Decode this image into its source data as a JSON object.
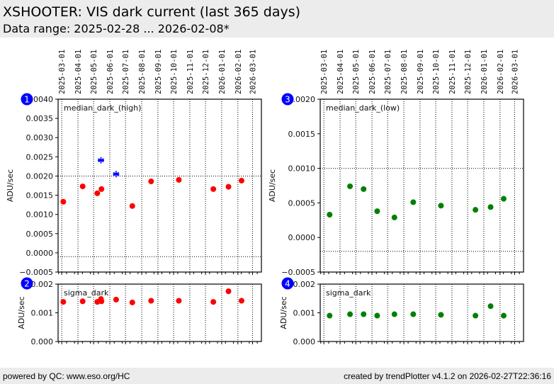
{
  "header": {
    "title": "XSHOOTER: VIS dark current (last 365 days)",
    "subtitle": "Data range: 2025-02-28 ... 2026-02-08*"
  },
  "footer": {
    "left": "powered by QC: www.eso.org/HC",
    "right": "created by trendPlotter v4.1.2 on 2026-02-27T22:36:16"
  },
  "colors": {
    "red_points": "#ff0000",
    "blue_points": "#0000ff",
    "green_points": "#008000",
    "badge": "#0000ff",
    "header_bg": "#ececec"
  },
  "chart_data": [
    {
      "id": "1",
      "type": "scatter",
      "title": "median_dark_(high)",
      "ylabel": "ADU/sec",
      "xlim": [
        "2025-02-22",
        "2026-03-18"
      ],
      "ylim": [
        -0.0005,
        0.004
      ],
      "yticks": [
        -0.0005,
        0.0,
        0.0005,
        0.001,
        0.0015,
        0.002,
        0.0025,
        0.003,
        0.0035,
        0.004
      ],
      "ytick_labels": [
        "−0.0005",
        "0.0000",
        "0.0005",
        "0.0010",
        "0.0015",
        "0.0020",
        "0.0025",
        "0.0030",
        "0.0035",
        "0.0040"
      ],
      "xticks": [
        "2025-03-01",
        "2025-04-01",
        "2025-05-01",
        "2025-06-01",
        "2025-07-01",
        "2025-08-01",
        "2025-09-01",
        "2025-10-01",
        "2025-11-01",
        "2025-12-01",
        "2026-01-01",
        "2026-02-01",
        "2026-03-01"
      ],
      "reference_lines": [
        0.002,
        -0.0001
      ],
      "grid": "vertical-dotted",
      "series": [
        {
          "name": "normal",
          "marker": "circle",
          "color": "#ff0000",
          "x": [
            "2025-03-04",
            "2025-04-10",
            "2025-05-08",
            "2025-05-16",
            "2025-07-14",
            "2025-08-19",
            "2025-10-11",
            "2025-12-16",
            "2026-01-14",
            "2026-02-08"
          ],
          "y": [
            0.00133,
            0.00173,
            0.00155,
            0.00166,
            0.00122,
            0.00186,
            0.0019,
            0.00166,
            0.00172,
            0.00188
          ]
        },
        {
          "name": "outlier",
          "marker": "asterisk",
          "color": "#0000ff",
          "x": [
            "2025-05-15",
            "2025-06-13"
          ],
          "y": [
            0.00241,
            0.00205
          ]
        }
      ]
    },
    {
      "id": "2",
      "type": "scatter",
      "title": "sigma_dark",
      "ylabel": "ADU/sec",
      "xlim": [
        "2025-02-22",
        "2026-03-18"
      ],
      "ylim": [
        0.0,
        0.002
      ],
      "yticks": [
        0.0,
        0.001,
        0.002
      ],
      "ytick_labels": [
        "0.000",
        "0.001",
        "0.002"
      ],
      "xticks": [
        "2025-03-01",
        "2025-04-01",
        "2025-05-01",
        "2025-06-01",
        "2025-07-01",
        "2025-08-01",
        "2025-09-01",
        "2025-10-01",
        "2025-11-01",
        "2025-12-01",
        "2026-01-01",
        "2026-02-01",
        "2026-03-01"
      ],
      "reference_lines": [],
      "grid": "vertical-dotted",
      "series": [
        {
          "name": "sigma",
          "marker": "circle",
          "color": "#ff0000",
          "x": [
            "2025-03-04",
            "2025-04-10",
            "2025-05-08",
            "2025-05-15",
            "2025-05-16",
            "2025-06-13",
            "2025-07-14",
            "2025-08-19",
            "2025-10-11",
            "2025-12-16",
            "2026-01-14",
            "2026-02-08"
          ],
          "y": [
            0.00138,
            0.0014,
            0.00138,
            0.00148,
            0.0014,
            0.00146,
            0.00136,
            0.00142,
            0.00142,
            0.00138,
            0.00175,
            0.00142
          ]
        }
      ]
    },
    {
      "id": "3",
      "type": "scatter",
      "title": "median_dark_(low)",
      "ylabel": "ADU/sec",
      "xlim": [
        "2025-02-22",
        "2026-03-18"
      ],
      "ylim": [
        -0.0005,
        0.002
      ],
      "yticks": [
        -0.0005,
        0.0,
        0.0005,
        0.001,
        0.0015,
        0.002
      ],
      "ytick_labels": [
        "−0.0005",
        "0.0000",
        "0.0005",
        "0.0010",
        "0.0015",
        "0.0020"
      ],
      "xticks": [
        "2025-03-01",
        "2025-04-01",
        "2025-05-01",
        "2025-06-01",
        "2025-07-01",
        "2025-08-01",
        "2025-09-01",
        "2025-10-01",
        "2025-11-01",
        "2025-12-01",
        "2026-01-01",
        "2026-02-01",
        "2026-03-01"
      ],
      "reference_lines": [
        0.001,
        -0.0002
      ],
      "grid": "vertical-dotted",
      "series": [
        {
          "name": "normal",
          "marker": "circle",
          "color": "#008000",
          "x": [
            "2025-03-12",
            "2025-04-20",
            "2025-05-16",
            "2025-06-11",
            "2025-07-14",
            "2025-08-19",
            "2025-10-11",
            "2025-12-16",
            "2026-01-14",
            "2026-02-08"
          ],
          "y": [
            0.00033,
            0.00074,
            0.0007,
            0.00038,
            0.00029,
            0.00051,
            0.00046,
            0.0004,
            0.00044,
            0.00056
          ]
        }
      ]
    },
    {
      "id": "4",
      "type": "scatter",
      "title": "sigma_dark",
      "ylabel": "ADU/sec",
      "xlim": [
        "2025-02-22",
        "2026-03-18"
      ],
      "ylim": [
        0.0,
        0.002
      ],
      "yticks": [
        0.0,
        0.001,
        0.002
      ],
      "ytick_labels": [
        "0.000",
        "0.001",
        "0.002"
      ],
      "xticks": [
        "2025-03-01",
        "2025-04-01",
        "2025-05-01",
        "2025-06-01",
        "2025-07-01",
        "2025-08-01",
        "2025-09-01",
        "2025-10-01",
        "2025-11-01",
        "2025-12-01",
        "2026-01-01",
        "2026-02-01",
        "2026-03-01"
      ],
      "reference_lines": [],
      "grid": "vertical-dotted",
      "series": [
        {
          "name": "sigma",
          "marker": "circle",
          "color": "#008000",
          "x": [
            "2025-03-12",
            "2025-04-20",
            "2025-05-16",
            "2025-06-11",
            "2025-07-14",
            "2025-08-19",
            "2025-10-11",
            "2025-12-16",
            "2026-01-14",
            "2026-02-08"
          ],
          "y": [
            0.0009,
            0.00095,
            0.00095,
            0.0009,
            0.00095,
            0.00095,
            0.00093,
            0.0009,
            0.00123,
            0.0009
          ]
        }
      ]
    }
  ]
}
